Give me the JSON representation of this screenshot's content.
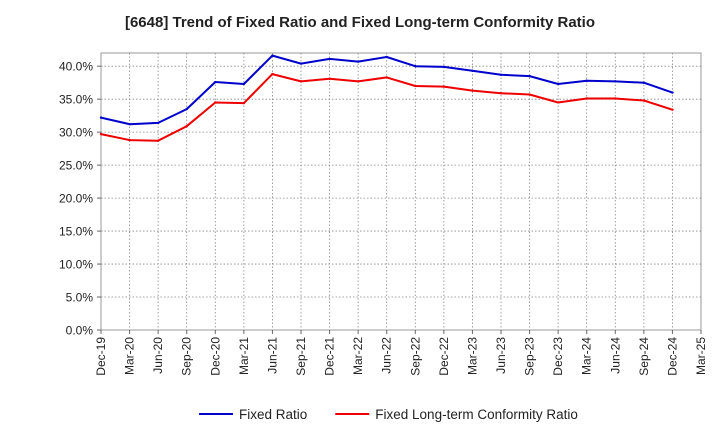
{
  "chart_data": {
    "type": "line",
    "title": "[6648]  Trend of Fixed Ratio and Fixed Long-term Conformity Ratio",
    "xlabel": "",
    "ylabel": "",
    "x": [
      "Dec-19",
      "Mar-20",
      "Jun-20",
      "Sep-20",
      "Dec-20",
      "Mar-21",
      "Jun-21",
      "Sep-21",
      "Dec-21",
      "Mar-22",
      "Jun-22",
      "Sep-22",
      "Dec-22",
      "Mar-23",
      "Jun-23",
      "Sep-23",
      "Dec-23",
      "Mar-24",
      "Jun-24",
      "Sep-24",
      "Dec-24",
      "Mar-25"
    ],
    "y_ticks": [
      "0.0%",
      "5.0%",
      "10.0%",
      "15.0%",
      "20.0%",
      "25.0%",
      "30.0%",
      "35.0%",
      "40.0%"
    ],
    "ylim": [
      0,
      42
    ],
    "grid": true,
    "legend_position": "bottom",
    "series": [
      {
        "name": "Fixed Ratio",
        "color": "#0000cc",
        "values": [
          32.2,
          31.2,
          31.4,
          33.5,
          37.6,
          37.3,
          41.6,
          40.4,
          41.1,
          40.7,
          41.4,
          40.0,
          39.9,
          39.3,
          38.7,
          38.5,
          37.3,
          37.8,
          37.7,
          37.5,
          36.0,
          null
        ]
      },
      {
        "name": "Fixed Long-term Conformity Ratio",
        "color": "#ee0000",
        "values": [
          29.7,
          28.8,
          28.7,
          30.9,
          34.5,
          34.4,
          38.8,
          37.7,
          38.1,
          37.7,
          38.3,
          37.0,
          36.9,
          36.3,
          35.9,
          35.7,
          34.5,
          35.1,
          35.1,
          34.8,
          33.4,
          null
        ]
      }
    ]
  }
}
